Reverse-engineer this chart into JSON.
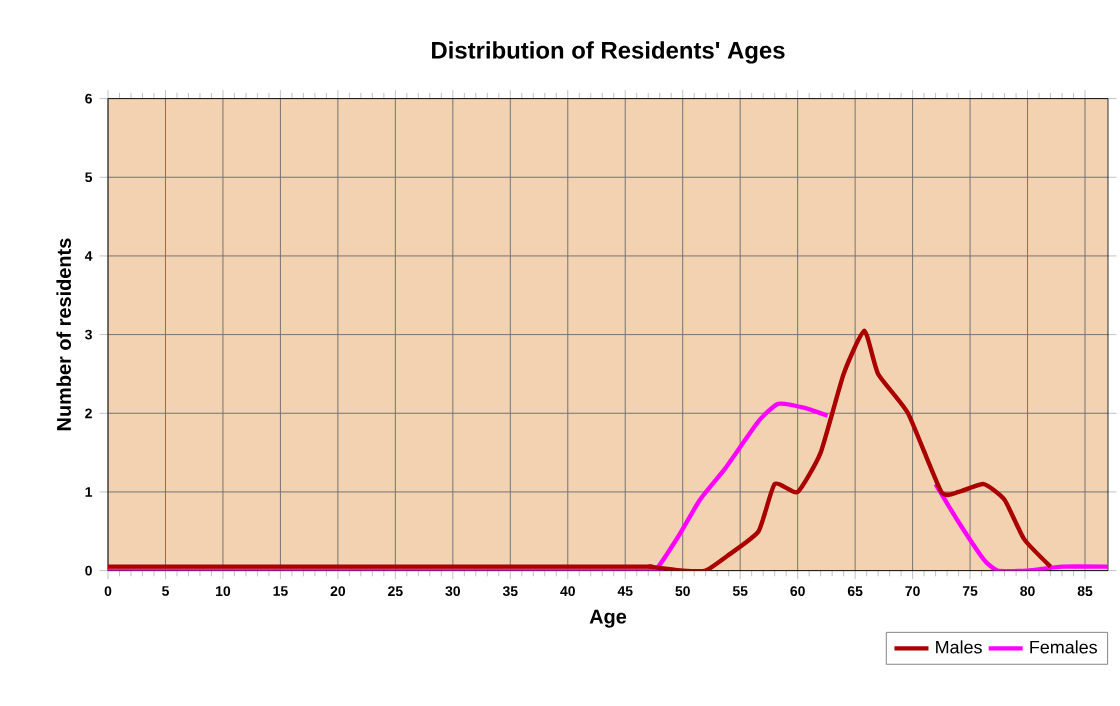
{
  "chart_data": {
    "type": "line",
    "title": "Distribution of Residents' Ages",
    "xlabel": "Age",
    "ylabel": "Number of residents",
    "xlim": [
      0,
      87
    ],
    "xticks": [
      0,
      5,
      10,
      15,
      20,
      25,
      30,
      35,
      40,
      45,
      50,
      55,
      60,
      65,
      70,
      75,
      80,
      85
    ],
    "ylim": [
      0,
      6
    ],
    "yticks": [
      0,
      1,
      2,
      3,
      4,
      5,
      6
    ],
    "grid": true,
    "legend": "bottom right",
    "series": [
      {
        "name": "Males",
        "color": "#aa0000",
        "x": [
          0,
          45,
          47,
          50,
          52,
          54,
          56.6,
          58,
          60,
          62,
          64,
          65.8,
          67,
          69.6,
          72.5,
          74,
          76.2,
          78,
          79.7,
          82
        ],
        "values": [
          0.05,
          0.05,
          0.05,
          0,
          0,
          0.2,
          0.5,
          1.1,
          1.0,
          1.5,
          2.5,
          3.05,
          2.5,
          2.0,
          1.0,
          1.0,
          1.1,
          0.9,
          0.4,
          0.05
        ]
      },
      {
        "name": "Females",
        "color": "#ff00ff",
        "x": [
          0,
          46,
          47.6,
          49.6,
          51.5,
          53.7,
          56.6,
          58.3,
          60.6,
          62.6,
          64,
          65.8,
          67,
          69.6,
          72,
          73.9,
          76.2,
          77.4,
          80,
          83,
          87
        ],
        "values": [
          0,
          0,
          0,
          0.43,
          0.9,
          1.3,
          1.9,
          2.12,
          2.07,
          1.97,
          null,
          null,
          null,
          null,
          1.1,
          0.64,
          0.14,
          0,
          0,
          0.05,
          0.05
        ]
      }
    ]
  }
}
